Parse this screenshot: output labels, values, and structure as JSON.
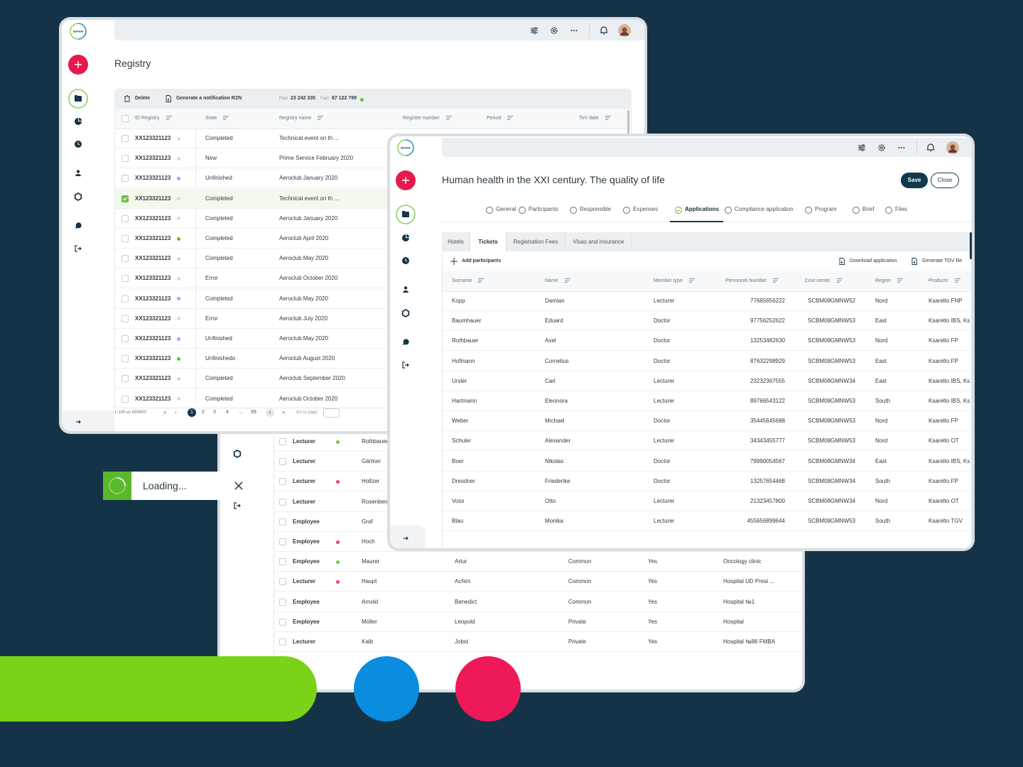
{
  "brand": "BAYER",
  "registry": {
    "title": "Registry",
    "toolbar": {
      "delete": "Delete",
      "generate": "Generate a notification RZN",
      "plan_label": "Plan:",
      "plan_value": "23 242 335",
      "fact_label": "Fact:",
      "fact_value": "67 122 799"
    },
    "columns": [
      "ID Registry",
      "State",
      "Registry name",
      "Register number",
      "Period",
      "ToV date"
    ],
    "rows": [
      {
        "id": "XX123321123",
        "state": "Completed",
        "name": "Technical event on th ...",
        "dot": "#f8cdd8",
        "checked": false
      },
      {
        "id": "XX123321123",
        "state": "New",
        "name": "Prime Service February 2020",
        "dot": "#f8cdd8",
        "checked": false
      },
      {
        "id": "XX123321123",
        "state": "Unfinished",
        "name": "Aeroclub January 2020",
        "dot": "#98a8f2",
        "checked": false
      },
      {
        "id": "XX123321123",
        "state": "Completed",
        "name": "Technical event on th ...",
        "dot": "#f8cdd8",
        "checked": true
      },
      {
        "id": "XX123321123",
        "state": "Completed",
        "name": "Aeroclub January 2020",
        "dot": "#f8cdd8",
        "checked": false
      },
      {
        "id": "XX123321123",
        "state": "Completed",
        "name": "Aeroclub April 2020",
        "dot": "#5cc22c",
        "checked": false
      },
      {
        "id": "XX123321123",
        "state": "Completed",
        "name": "Aeroclub May 2020",
        "dot": "#cfd4d8",
        "checked": false
      },
      {
        "id": "XX123321123",
        "state": "Error",
        "name": "Aeroclub October 2020",
        "dot": "#f8cdd8",
        "checked": false
      },
      {
        "id": "XX123321123",
        "state": "Completed",
        "name": "Aeroclub May 2020",
        "dot": "#98a8f2",
        "checked": false
      },
      {
        "id": "XX123321123",
        "state": "Error",
        "name": "Aeroclub July 2020",
        "dot": "#f8cdd8",
        "checked": false
      },
      {
        "id": "XX123321123",
        "state": "Unfinished",
        "name": "Aeroclub May 2020",
        "dot": "#98a8f2",
        "checked": false
      },
      {
        "id": "XX123321123",
        "state": "Unfinishedo",
        "name": "Aeroclub August 2020",
        "dot": "#5cc22c",
        "checked": false
      },
      {
        "id": "XX123321123",
        "state": "Completed",
        "name": "Aeroclub September 2020",
        "dot": "#cfd4d8",
        "checked": false
      },
      {
        "id": "XX123321123",
        "state": "Completed",
        "name": "Aeroclub October 2020",
        "dot": "#f8cdd8",
        "checked": false
      }
    ],
    "pagination": {
      "range": "1-100 из 999000",
      "first": "«",
      "prev": "‹",
      "pages": [
        "1",
        "2",
        "3",
        "4",
        "...",
        "99"
      ],
      "next": "›",
      "last": "»",
      "goto": "Go to page"
    }
  },
  "toast": {
    "text": "Loading..."
  },
  "participants": {
    "rows": [
      {
        "type": "Lecturer",
        "dot": "#6cc93a",
        "surname": "Rothbauer"
      },
      {
        "type": "Lecturer",
        "dot": null,
        "surname": "Gärtner"
      },
      {
        "type": "Lecturer",
        "dot": "#ee3d6c",
        "surname": "Holtzer"
      },
      {
        "type": "Lecturer",
        "dot": null,
        "surname": "Rosenberg"
      },
      {
        "type": "Employee",
        "dot": null,
        "surname": "Graf"
      },
      {
        "type": "Employee",
        "dot": "#ee3d6c",
        "surname": "Hoch"
      },
      {
        "type": "Employee",
        "dot": "#6cc93a",
        "surname": "Maurer",
        "name": "Artur",
        "contract": "Common",
        "flag": "Yes",
        "clinic": "Oncology clinic"
      },
      {
        "type": "Lecturer",
        "dot": "#ee3d6c",
        "surname": "Haupt",
        "name": "Achim",
        "contract": "Common",
        "flag": "Yes",
        "clinic": "Hospital UD Presi ..."
      },
      {
        "type": "Employee",
        "dot": null,
        "surname": "Arnold",
        "name": "Benedict",
        "contract": "Common",
        "flag": "Yes",
        "clinic": "Hospital №1"
      },
      {
        "type": "Employee",
        "dot": null,
        "surname": "Möller",
        "name": "Leopold",
        "contract": "Private",
        "flag": "Yes",
        "clinic": "Hospital"
      },
      {
        "type": "Lecturer",
        "dot": null,
        "surname": "Kalb",
        "name": "Jobst",
        "contract": "Private",
        "flag": "Yes",
        "clinic": "Hospital №86 FMBA"
      }
    ]
  },
  "event": {
    "title": "Human health in the XXI century. The quality of life",
    "save": "Save",
    "close": "Close",
    "tabs": [
      "General",
      "Participants",
      "Responsible",
      "Expenses",
      "Applications",
      "Compliance application",
      "Program",
      "Brief",
      "Files"
    ],
    "active_tab": 4,
    "subtabs": [
      "Hotels",
      "Tickets",
      "Registration Fees",
      "Visas and insurance"
    ],
    "active_subtab": 1,
    "actions": {
      "add": "Add participants",
      "download": "Download application",
      "generate": "Generate TOV file"
    },
    "columns": [
      "Surname",
      "Name",
      "Member type",
      "Personnel Number",
      "Cost center",
      "Region",
      "Products"
    ],
    "rows": [
      [
        "Kopp",
        "Damian",
        "Lecturer",
        "77665656222",
        "SCBM08GMNW52",
        "Nord",
        "Ksarelto FNP"
      ],
      [
        "Baumhauer",
        "Eduard",
        "Doctor",
        "97756252622",
        "SCBM08GMNW53",
        "East",
        "Ksarelto IBS, Ks"
      ],
      [
        "Rothbauer",
        "Axel",
        "Doctor",
        "13253482630",
        "SCBM08GMNW53",
        "Nord",
        "Ksarelto FP"
      ],
      [
        "Hofmann",
        "Cornelius",
        "Doctor",
        "87632298929",
        "SCBM08GMNW53",
        "East",
        "Ksarelto FP"
      ],
      [
        "Ursler",
        "Carl",
        "Lecturer",
        "23232367555",
        "SCBM08GMNW34",
        "East",
        "Ksarelto IBS, Ks"
      ],
      [
        "Hartmann",
        "Eleonora",
        "Lecturer",
        "89766543122",
        "SCBM08GMNW53",
        "South",
        "Ksarelto IBS, Ks"
      ],
      [
        "Weber",
        "Michael",
        "Doctor",
        "35445645688",
        "SCBM08GMNW53",
        "Nord",
        "Ksarelto FP"
      ],
      [
        "Schuler",
        "Alexander",
        "Lecturer",
        "34343455777",
        "SCBM08GMNW53",
        "Nord",
        "Ksarelto OT"
      ],
      [
        "Boer",
        "Nikolas",
        "Doctor",
        "79990054567",
        "SCBM08GMNW34",
        "East",
        "Ksarelto IBS, Ks"
      ],
      [
        "Dresdner",
        "Friederike",
        "Doctor",
        "13257654468",
        "SCBM08GMNW34",
        "South",
        "Ksarelto FP"
      ],
      [
        "Voss",
        "Otto",
        "Lecturer",
        "21323457800",
        "SCBM08GMNW34",
        "Nord",
        "Ksarelto OT"
      ],
      [
        "Blau",
        "Monika",
        "Lecturer",
        "455656899644",
        "SCBM08GMNW53",
        "South",
        "Ksarelto TGV"
      ]
    ]
  }
}
